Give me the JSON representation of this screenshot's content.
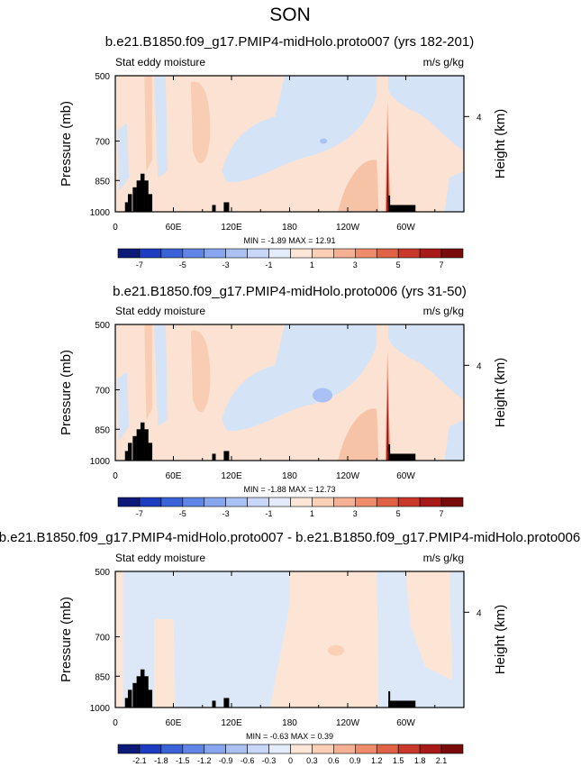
{
  "figure": {
    "title": "SON"
  },
  "colors": {
    "land": "#000000",
    "frame": "#000000"
  },
  "chart_data": [
    {
      "type": "heatmap",
      "title": "b.e21.B1850.f09_g17.PMIP4-midHolo.proto007 (yrs 182-201)",
      "variable": "Stat eddy moisture",
      "units": "m/s g/kg",
      "ylabel": "Pressure (mb)",
      "ylabel_right": "Height (km)",
      "y_ticks": [
        "500",
        "700",
        "850",
        "1000"
      ],
      "y_right_ticks": [
        "4"
      ],
      "x_ticks": [
        "0",
        "60E",
        "120E",
        "180",
        "120W",
        "60W"
      ],
      "min_max": "MIN = -1.89  MAX = 12.91",
      "colorbar": {
        "labels": [
          "-7",
          "-5",
          "-3",
          "-1",
          "1",
          "3",
          "5",
          "7"
        ],
        "colors": [
          "#0b1a78",
          "#1c3dc0",
          "#3a63d8",
          "#5f86e6",
          "#86a6ef",
          "#a9c1f5",
          "#c8d7f8",
          "#e4ecfb",
          "#fde6d8",
          "#fbd0b7",
          "#f6b093",
          "#ee8c6b",
          "#df6246",
          "#c9382a",
          "#a81a18",
          "#7a0b0b"
        ]
      },
      "field": {
        "background": "#fbe2d3",
        "regions": [
          {
            "name": "eastern pacific blue",
            "color": "#d6e4f7"
          },
          {
            "name": "central pacific blue",
            "color": "#d6e4f7"
          },
          {
            "name": "atlantic blue",
            "color": "#d6e4f7"
          },
          {
            "name": "small blue cell",
            "color": "#a9c1f5"
          },
          {
            "name": "warm east pacific",
            "color": "#f6c4a9"
          },
          {
            "name": "andes maximum",
            "color": "#7a0b0b"
          }
        ]
      }
    },
    {
      "type": "heatmap",
      "title": "b.e21.B1850.f09_g17.PMIP4-midHolo.proto006 (yrs 31-50)",
      "variable": "Stat eddy moisture",
      "units": "m/s g/kg",
      "ylabel": "Pressure (mb)",
      "ylabel_right": "Height (km)",
      "y_ticks": [
        "500",
        "700",
        "850",
        "1000"
      ],
      "y_right_ticks": [
        "4"
      ],
      "x_ticks": [
        "0",
        "60E",
        "120E",
        "180",
        "120W",
        "60W"
      ],
      "min_max": "MIN = -1.88  MAX = 12.73",
      "colorbar": {
        "labels": [
          "-7",
          "-5",
          "-3",
          "-1",
          "1",
          "3",
          "5",
          "7"
        ],
        "colors": [
          "#0b1a78",
          "#1c3dc0",
          "#3a63d8",
          "#5f86e6",
          "#86a6ef",
          "#a9c1f5",
          "#c8d7f8",
          "#e4ecfb",
          "#fde6d8",
          "#fbd0b7",
          "#f6b093",
          "#ee8c6b",
          "#df6246",
          "#c9382a",
          "#a81a18",
          "#7a0b0b"
        ]
      }
    },
    {
      "type": "heatmap",
      "title": "b.e21.B1850.f09_g17.PMIP4-midHolo.proto007 - b.e21.B1850.f09_g17.PMIP4-midHolo.proto006",
      "variable": "Stat eddy moisture",
      "units": "m/s g/kg",
      "ylabel": "Pressure (mb)",
      "ylabel_right": "Height (km)",
      "y_ticks": [
        "500",
        "700",
        "850",
        "1000"
      ],
      "y_right_ticks": [
        "4"
      ],
      "x_ticks": [
        "0",
        "60E",
        "120E",
        "180",
        "120W",
        "60W"
      ],
      "min_max": "MIN = -0.63  MAX =  0.39",
      "colorbar": {
        "labels": [
          "-2.1",
          "-1.8",
          "-1.5",
          "-1.2",
          "-0.9",
          "-0.6",
          "-0.3",
          "0",
          "0.3",
          "0.6",
          "0.9",
          "1.2",
          "1.5",
          "1.8",
          "2.1"
        ],
        "colors": [
          "#0b1a78",
          "#1c3dc0",
          "#3a63d8",
          "#5f86e6",
          "#86a6ef",
          "#a9c1f5",
          "#c8d7f8",
          "#e4ecfb",
          "#fde6d8",
          "#fbd0b7",
          "#f6b093",
          "#ee8c6b",
          "#df6246",
          "#c9382a",
          "#a81a18",
          "#7a0b0b"
        ]
      }
    }
  ]
}
